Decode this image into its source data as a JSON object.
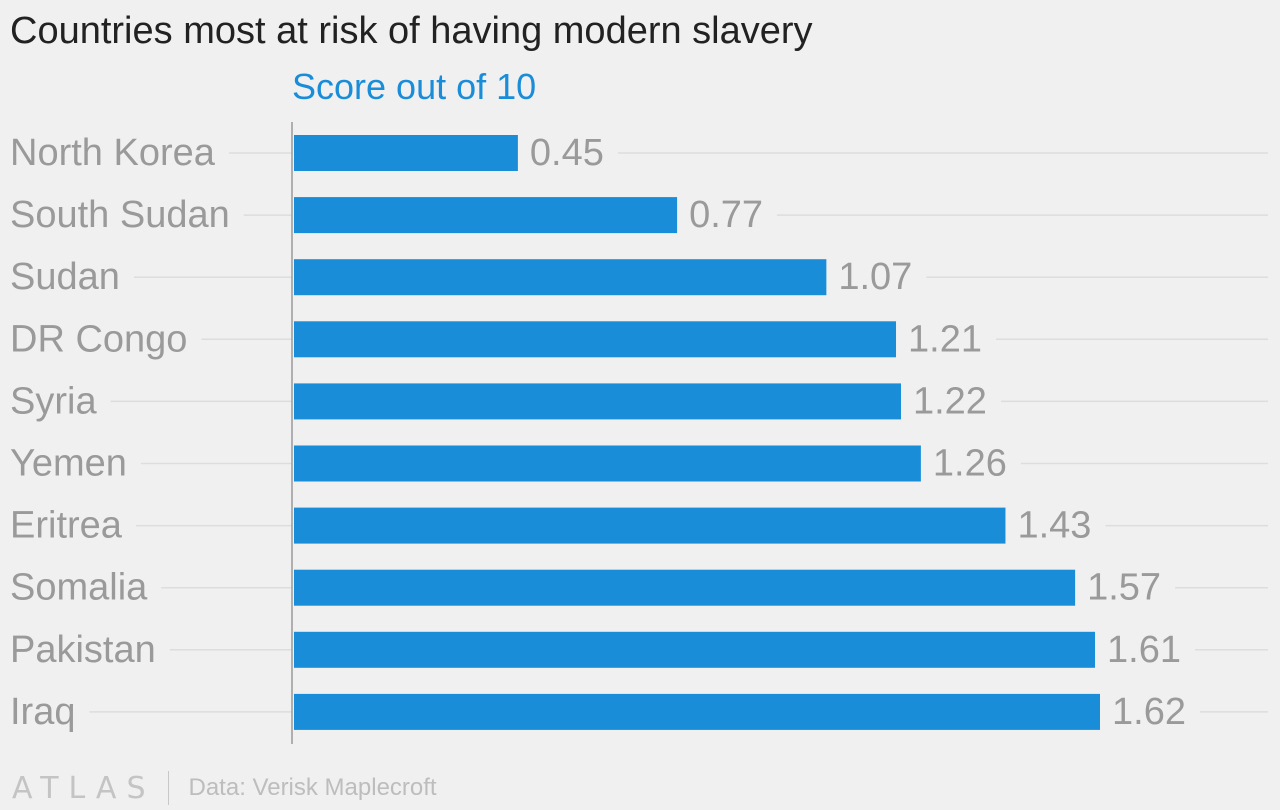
{
  "title": "Countries most at risk of having modern slavery",
  "footer": {
    "logo": "ATLAS",
    "source": "Data: Verisk Maplecroft"
  },
  "colors": {
    "bar": "#1a8dd9",
    "subtitle": "#1a8dd9",
    "title": "#222222",
    "label": "#9a9a9a",
    "gridline": "#dddddd",
    "axis": "#999999",
    "background": "#f0f0f0"
  },
  "chart_data": {
    "type": "bar",
    "orientation": "horizontal",
    "title": "Countries most at risk of having modern slavery",
    "subtitle": "Score out of 10",
    "xlabel": "",
    "ylabel": "",
    "categories": [
      "North Korea",
      "South Sudan",
      "Sudan",
      "DR Congo",
      "Syria",
      "Yemen",
      "Eritrea",
      "Somalia",
      "Pakistan",
      "Iraq"
    ],
    "values": [
      0.45,
      0.77,
      1.07,
      1.21,
      1.22,
      1.26,
      1.43,
      1.57,
      1.61,
      1.62
    ],
    "value_labels": [
      "0.45",
      "0.77",
      "1.07",
      "1.21",
      "1.22",
      "1.26",
      "1.43",
      "1.57",
      "1.61",
      "1.62"
    ],
    "xlim": [
      0,
      1.62
    ],
    "grid": true,
    "legend": "none"
  }
}
